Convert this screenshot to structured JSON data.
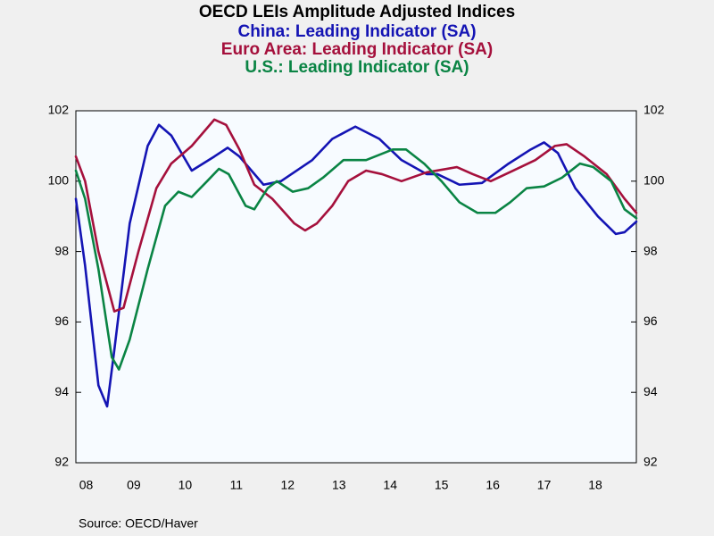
{
  "chart_data": {
    "type": "line",
    "title": "OECD LEIs Amplitude Adjusted Indices",
    "source": "Source:  OECD/Haver",
    "xlim": [
      2008.37,
      2019.3
    ],
    "xticks": [
      {
        "value": 2008.57,
        "label": "08"
      },
      {
        "value": 2009.5,
        "label": "09"
      },
      {
        "value": 2010.5,
        "label": "10"
      },
      {
        "value": 2011.5,
        "label": "11"
      },
      {
        "value": 2012.5,
        "label": "12"
      },
      {
        "value": 2013.5,
        "label": "13"
      },
      {
        "value": 2014.5,
        "label": "14"
      },
      {
        "value": 2015.5,
        "label": "15"
      },
      {
        "value": 2016.5,
        "label": "16"
      },
      {
        "value": 2017.5,
        "label": "17"
      },
      {
        "value": 2018.5,
        "label": "18"
      }
    ],
    "ylim": [
      92,
      102
    ],
    "yticks": [
      92,
      94,
      96,
      98,
      100,
      102
    ],
    "y2lim": [
      92,
      102
    ],
    "y2ticks": [
      92,
      94,
      96,
      98,
      100,
      102
    ],
    "series": [
      {
        "name": "China: Leading Indicator (SA)",
        "color": "#1414b4",
        "x": [
          2008.37,
          2008.55,
          2008.81,
          2008.98,
          2009.12,
          2009.42,
          2009.77,
          2009.99,
          2010.23,
          2010.63,
          2011.07,
          2011.33,
          2011.56,
          2012.03,
          2012.37,
          2012.98,
          2013.37,
          2013.82,
          2014.29,
          2014.72,
          2015.21,
          2015.42,
          2015.85,
          2016.29,
          2016.81,
          2017.24,
          2017.5,
          2017.77,
          2018.11,
          2018.55,
          2018.9,
          2019.07,
          2019.3
        ],
        "values": [
          99.5,
          97.6,
          94.2,
          93.6,
          95.2,
          98.8,
          101.0,
          101.6,
          101.3,
          100.3,
          100.7,
          100.95,
          100.7,
          99.9,
          100.0,
          100.6,
          101.2,
          101.55,
          101.2,
          100.6,
          100.2,
          100.2,
          99.9,
          99.95,
          100.5,
          100.9,
          101.1,
          100.8,
          99.8,
          99.0,
          98.5,
          98.55,
          98.85
        ]
      },
      {
        "name": "Euro Area: Leading Indicator (SA)",
        "color": "#a5103c",
        "x": [
          2008.37,
          2008.55,
          2008.81,
          2009.12,
          2009.3,
          2009.59,
          2009.94,
          2010.23,
          2010.63,
          2011.07,
          2011.3,
          2011.56,
          2011.85,
          2012.2,
          2012.63,
          2012.84,
          2013.07,
          2013.37,
          2013.68,
          2014.03,
          2014.34,
          2014.72,
          2015.21,
          2015.8,
          2016.11,
          2016.46,
          2016.9,
          2017.33,
          2017.71,
          2017.94,
          2018.29,
          2018.72,
          2019.07,
          2019.3
        ],
        "values": [
          100.7,
          100.0,
          98.0,
          96.3,
          96.4,
          98.0,
          99.8,
          100.5,
          101.0,
          101.75,
          101.6,
          100.9,
          99.9,
          99.5,
          98.8,
          98.6,
          98.8,
          99.3,
          100.0,
          100.3,
          100.2,
          100.0,
          100.25,
          100.4,
          100.2,
          100.0,
          100.3,
          100.6,
          101.0,
          101.05,
          100.7,
          100.2,
          99.5,
          99.1
        ]
      },
      {
        "name": "U.S.: Leading Indicator (SA)",
        "color": "#0a8444",
        "x": [
          2008.37,
          2008.55,
          2008.81,
          2009.07,
          2009.21,
          2009.42,
          2009.77,
          2010.11,
          2010.37,
          2010.63,
          2010.93,
          2011.16,
          2011.35,
          2011.68,
          2011.85,
          2012.11,
          2012.29,
          2012.6,
          2012.9,
          2013.19,
          2013.59,
          2014.03,
          2014.55,
          2014.81,
          2015.16,
          2015.5,
          2015.85,
          2016.2,
          2016.55,
          2016.84,
          2017.16,
          2017.5,
          2017.85,
          2018.2,
          2018.46,
          2018.81,
          2019.07,
          2019.3
        ],
        "values": [
          100.3,
          99.5,
          97.5,
          95.0,
          94.65,
          95.5,
          97.5,
          99.3,
          99.7,
          99.55,
          100.0,
          100.35,
          100.2,
          99.3,
          99.2,
          99.8,
          100.0,
          99.7,
          99.8,
          100.1,
          100.6,
          100.6,
          100.9,
          100.9,
          100.5,
          100.0,
          99.4,
          99.1,
          99.1,
          99.4,
          99.8,
          99.85,
          100.1,
          100.5,
          100.4,
          100.0,
          99.2,
          98.95
        ]
      }
    ]
  }
}
